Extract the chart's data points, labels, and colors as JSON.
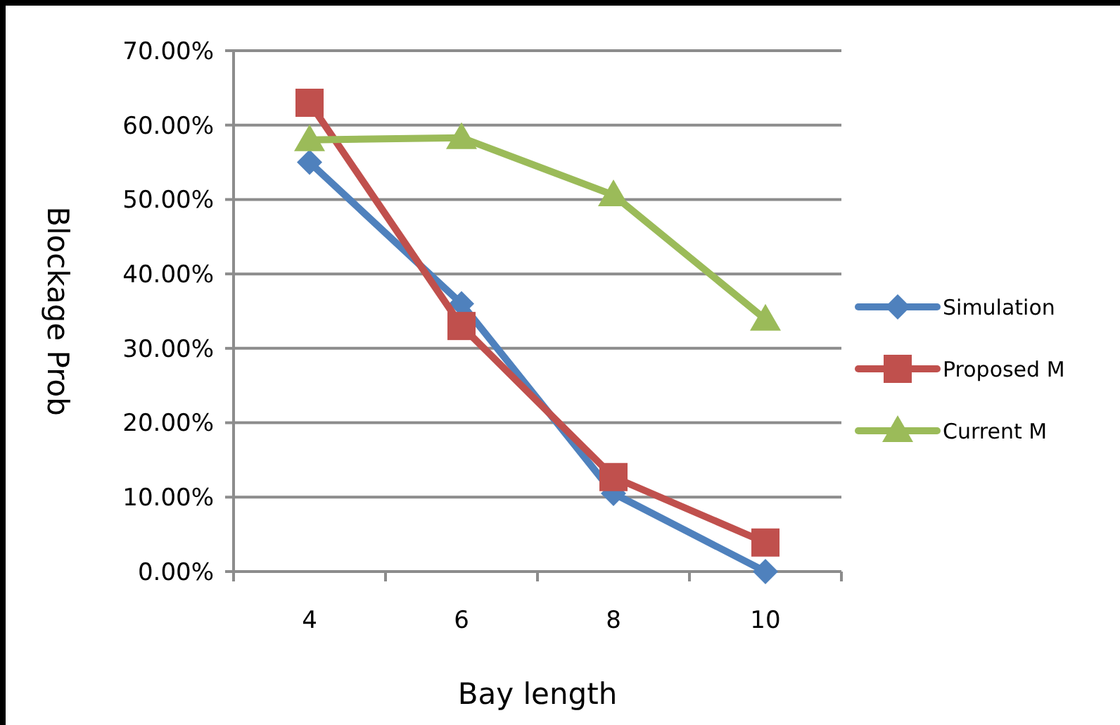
{
  "chart_data": {
    "type": "line",
    "xlabel": "Bay length",
    "ylabel": "Blockage Prob",
    "categories": [
      "4",
      "6",
      "8",
      "10"
    ],
    "series": [
      {
        "name": "Simulation",
        "color": "#4f81bd",
        "marker": "diamond",
        "values": [
          55,
          36,
          10.5,
          0
        ]
      },
      {
        "name": "Proposed M",
        "color": "#c0504d",
        "marker": "square",
        "values": [
          63,
          33,
          12.7,
          3.9
        ]
      },
      {
        "name": "Current M",
        "color": "#9bbb59",
        "marker": "triangle",
        "values": [
          58,
          58.3,
          50.6,
          33.9
        ]
      }
    ],
    "ylim": [
      0,
      70
    ],
    "yticks": [
      {
        "value": 0,
        "label": "0.00%"
      },
      {
        "value": 10,
        "label": "10.00%"
      },
      {
        "value": 20,
        "label": "20.00%"
      },
      {
        "value": 30,
        "label": "30.00%"
      },
      {
        "value": 40,
        "label": "40.00%"
      },
      {
        "value": 50,
        "label": "50.00%"
      },
      {
        "value": 60,
        "label": "60.00%"
      },
      {
        "value": 70,
        "label": "70.00%"
      }
    ],
    "grid": "y",
    "legend": "right"
  }
}
